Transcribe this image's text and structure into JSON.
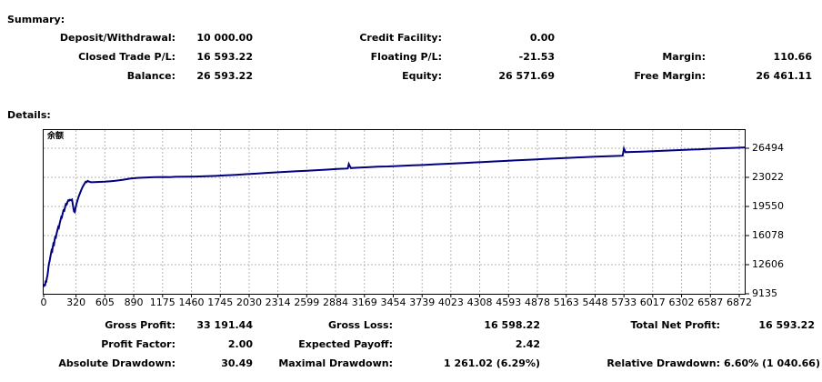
{
  "summary": {
    "title": "Summary:",
    "col1": [
      {
        "label": "Deposit/Withdrawal:",
        "value": "10 000.00"
      },
      {
        "label": "Closed Trade P/L:",
        "value": "16 593.22"
      },
      {
        "label": "Balance:",
        "value": "26 593.22"
      }
    ],
    "col2": [
      {
        "label": "Credit Facility:",
        "value": "0.00"
      },
      {
        "label": "Floating P/L:",
        "value": "-21.53"
      },
      {
        "label": "Equity:",
        "value": "26 571.69"
      }
    ],
    "col3": [
      {
        "label": "Margin:",
        "value": "110.66"
      },
      {
        "label": "Free Margin:",
        "value": "26 461.11"
      }
    ]
  },
  "details": {
    "title": "Details:",
    "col1": [
      {
        "label": "Gross Profit:",
        "value": "33 191.44"
      },
      {
        "label": "Profit Factor:",
        "value": "2.00"
      },
      {
        "label": "Absolute Drawdown:",
        "value": "30.49"
      }
    ],
    "col2": [
      {
        "label": "Gross Loss:",
        "value": "16 598.22"
      },
      {
        "label": "Expected Payoff:",
        "value": "2.42"
      },
      {
        "label": "Maximal Drawdown:",
        "value": "1 261.02 (6.29%)"
      }
    ],
    "col3": [
      {
        "label": "Total Net Profit:",
        "value": "16 593.22"
      },
      {
        "label": "Relative Drawdown:",
        "value": "6.60% (1 040.66)"
      }
    ]
  },
  "chart_data": {
    "type": "line",
    "legend": "余额",
    "line_color": "#000080",
    "grid_color": "#b5b5b5",
    "x_max": 6926,
    "y_min": 9135,
    "y_max": 28665,
    "x_ticks": [
      0,
      320,
      605,
      890,
      1175,
      1460,
      1745,
      2030,
      2314,
      2599,
      2884,
      3169,
      3454,
      3739,
      4023,
      4308,
      4593,
      4878,
      5163,
      5448,
      5733,
      6017,
      6302,
      6587,
      6872
    ],
    "y_ticks": [
      9135,
      12606,
      16078,
      19550,
      23022,
      26494
    ],
    "series": [
      {
        "name": "余额 (Balance)",
        "points": [
          [
            0,
            9970
          ],
          [
            8,
            10200
          ],
          [
            14,
            10180
          ],
          [
            20,
            10600
          ],
          [
            26,
            10580
          ],
          [
            32,
            11050
          ],
          [
            38,
            11300
          ],
          [
            44,
            11900
          ],
          [
            48,
            12300
          ],
          [
            54,
            12800
          ],
          [
            60,
            13100
          ],
          [
            66,
            13500
          ],
          [
            72,
            13900
          ],
          [
            78,
            14300
          ],
          [
            84,
            14200
          ],
          [
            90,
            14700
          ],
          [
            96,
            15100
          ],
          [
            102,
            15000
          ],
          [
            108,
            15500
          ],
          [
            114,
            15900
          ],
          [
            120,
            15850
          ],
          [
            128,
            16300
          ],
          [
            136,
            16700
          ],
          [
            144,
            17100
          ],
          [
            150,
            17000
          ],
          [
            158,
            17500
          ],
          [
            166,
            17900
          ],
          [
            174,
            18300
          ],
          [
            180,
            18250
          ],
          [
            188,
            18700
          ],
          [
            196,
            19100
          ],
          [
            204,
            19050
          ],
          [
            212,
            19500
          ],
          [
            220,
            19850
          ],
          [
            228,
            19800
          ],
          [
            236,
            20100
          ],
          [
            244,
            20300
          ],
          [
            252,
            20250
          ],
          [
            260,
            20350
          ],
          [
            270,
            20300
          ],
          [
            280,
            20380
          ],
          [
            290,
            19600
          ],
          [
            300,
            18950
          ],
          [
            307,
            18880
          ],
          [
            315,
            19400
          ],
          [
            325,
            19900
          ],
          [
            335,
            20300
          ],
          [
            345,
            20700
          ],
          [
            355,
            21000
          ],
          [
            365,
            21300
          ],
          [
            375,
            21600
          ],
          [
            385,
            21900
          ],
          [
            395,
            22100
          ],
          [
            405,
            22300
          ],
          [
            415,
            22500
          ],
          [
            425,
            22450
          ],
          [
            435,
            22600
          ],
          [
            445,
            22550
          ],
          [
            455,
            22480
          ],
          [
            470,
            22440
          ],
          [
            500,
            22460
          ],
          [
            550,
            22480
          ],
          [
            600,
            22500
          ],
          [
            650,
            22550
          ],
          [
            700,
            22600
          ],
          [
            780,
            22730
          ],
          [
            860,
            22880
          ],
          [
            940,
            22970
          ],
          [
            1020,
            23010
          ],
          [
            1100,
            23040
          ],
          [
            1200,
            23070
          ],
          [
            1250,
            23040
          ],
          [
            1300,
            23090
          ],
          [
            1400,
            23110
          ],
          [
            1500,
            23125
          ],
          [
            1600,
            23150
          ],
          [
            1700,
            23200
          ],
          [
            1800,
            23260
          ],
          [
            1900,
            23330
          ],
          [
            2000,
            23400
          ],
          [
            2100,
            23470
          ],
          [
            2200,
            23550
          ],
          [
            2300,
            23620
          ],
          [
            2400,
            23690
          ],
          [
            2500,
            23750
          ],
          [
            2600,
            23820
          ],
          [
            2700,
            23880
          ],
          [
            2800,
            23950
          ],
          [
            2900,
            24020
          ],
          [
            2980,
            24070
          ],
          [
            3005,
            24090
          ],
          [
            3015,
            24620
          ],
          [
            3035,
            24130
          ],
          [
            3120,
            24180
          ],
          [
            3200,
            24230
          ],
          [
            3300,
            24290
          ],
          [
            3400,
            24330
          ],
          [
            3454,
            24360
          ],
          [
            3550,
            24400
          ],
          [
            3650,
            24450
          ],
          [
            3750,
            24500
          ],
          [
            3850,
            24560
          ],
          [
            3950,
            24620
          ],
          [
            4050,
            24680
          ],
          [
            4150,
            24740
          ],
          [
            4250,
            24800
          ],
          [
            4350,
            24860
          ],
          [
            4450,
            24920
          ],
          [
            4550,
            24980
          ],
          [
            4650,
            25040
          ],
          [
            4750,
            25100
          ],
          [
            4850,
            25150
          ],
          [
            4950,
            25210
          ],
          [
            5050,
            25270
          ],
          [
            5150,
            25330
          ],
          [
            5250,
            25390
          ],
          [
            5350,
            25440
          ],
          [
            5450,
            25490
          ],
          [
            5550,
            25530
          ],
          [
            5650,
            25570
          ],
          [
            5720,
            25600
          ],
          [
            5733,
            26450
          ],
          [
            5748,
            26030
          ],
          [
            5830,
            26060
          ],
          [
            5910,
            26090
          ],
          [
            5990,
            26130
          ],
          [
            6070,
            26170
          ],
          [
            6150,
            26210
          ],
          [
            6230,
            26250
          ],
          [
            6310,
            26290
          ],
          [
            6390,
            26330
          ],
          [
            6470,
            26370
          ],
          [
            6550,
            26410
          ],
          [
            6630,
            26450
          ],
          [
            6710,
            26490
          ],
          [
            6790,
            26530
          ],
          [
            6872,
            26560
          ],
          [
            6926,
            26593
          ]
        ]
      }
    ]
  }
}
